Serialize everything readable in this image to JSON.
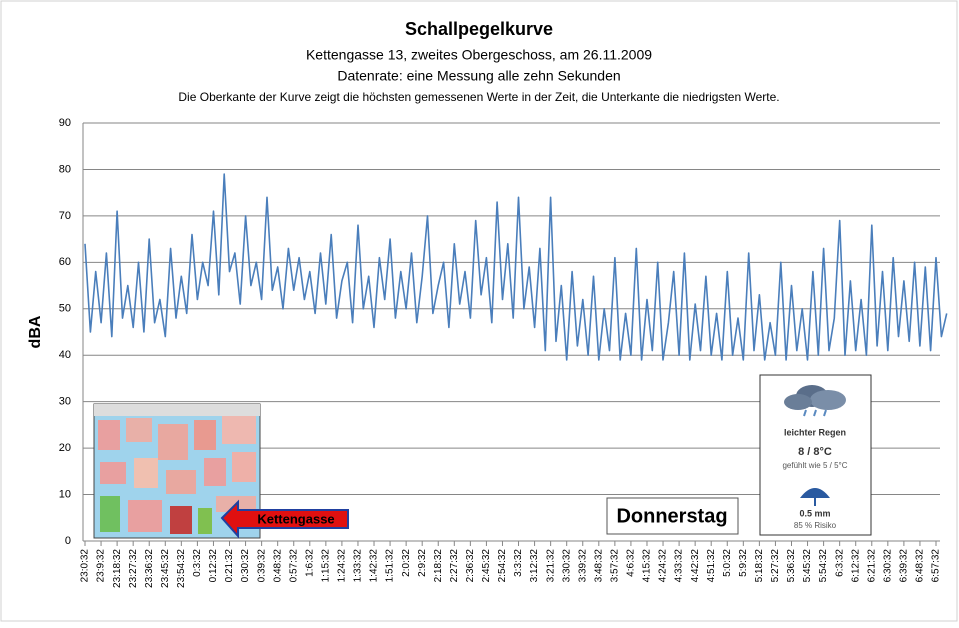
{
  "chart_data": {
    "type": "line",
    "title": "Schallpegelkurve",
    "subtitles": [
      "Kettengasse 13, zweites Obergeschoss, am 26.11.2009",
      "Datenrate: eine Messung alle zehn Sekunden",
      "Die Oberkante der Kurve zeigt die höchsten gemessenen Werte  in der Zeit, die Unterkante  die niedrigsten Werte."
    ],
    "y_label": "dBA",
    "ylim": [
      0,
      90
    ],
    "yticks": [
      0,
      10,
      20,
      30,
      40,
      50,
      60,
      70,
      80,
      90
    ],
    "grid": true,
    "categories": [
      "23:0:32",
      null,
      null,
      "23:9:32",
      null,
      null,
      "23:18:32",
      null,
      null,
      "23:27:32",
      null,
      null,
      "23:36:32",
      null,
      null,
      "23:45:32",
      null,
      null,
      "23:54:32",
      null,
      null,
      "0:3:32",
      null,
      null,
      "0:12:32",
      null,
      null,
      "0:21:32",
      null,
      null,
      "0:30:32",
      null,
      null,
      "0:39:32",
      null,
      null,
      "0:48:32",
      null,
      null,
      "0:57:32",
      null,
      null,
      "1:6:32",
      null,
      null,
      "1:15:32",
      null,
      null,
      "1:24:32",
      null,
      null,
      "1:33:32",
      null,
      null,
      "1:42:32",
      null,
      null,
      "1:51:32",
      null,
      null,
      "2:0:32",
      null,
      null,
      "2:9:32",
      null,
      null,
      "2:18:32",
      null,
      null,
      "2:27:32",
      null,
      null,
      "2:36:32",
      null,
      null,
      "2:45:32",
      null,
      null,
      "2:54:32",
      null,
      null,
      "3:3:32",
      null,
      null,
      "3:12:32",
      null,
      null,
      "3:21:32",
      null,
      null,
      "3:30:32",
      null,
      null,
      "3:39:32",
      null,
      null,
      "3:48:32",
      null,
      null,
      "3:57:32",
      null,
      null,
      "4:6:32",
      null,
      null,
      "4:15:32",
      null,
      null,
      "4:24:32",
      null,
      null,
      "4:33:32",
      null,
      null,
      "4:42:32",
      null,
      null,
      "4:51:32",
      null,
      null,
      "5:0:32",
      null,
      null,
      "5:9:32",
      null,
      null,
      "5:18:32",
      null,
      null,
      "5:27:32",
      null,
      null,
      "5:36:32",
      null,
      null,
      "5:45:32",
      null,
      null,
      "5:54:32",
      null,
      null,
      "6:3:32",
      null,
      null,
      "6:12:32",
      null,
      null,
      "6:21:32",
      null,
      null,
      "6:30:32",
      null,
      null,
      "6:39:32",
      null,
      null,
      "6:48:32",
      null,
      null,
      "6:57:32",
      null,
      null
    ],
    "series": [
      {
        "color": "#4a7ebb",
        "values": [
          64,
          45,
          58,
          47,
          62,
          44,
          71,
          48,
          55,
          46,
          60,
          45,
          65,
          47,
          52,
          44,
          63,
          48,
          57,
          49,
          66,
          52,
          60,
          55,
          71,
          53,
          79,
          58,
          62,
          51,
          70,
          55,
          60,
          52,
          74,
          54,
          59,
          50,
          63,
          54,
          61,
          52,
          58,
          49,
          62,
          51,
          66,
          48,
          56,
          60,
          47,
          68,
          50,
          57,
          46,
          61,
          52,
          65,
          48,
          58,
          50,
          62,
          47,
          57,
          70,
          49,
          55,
          60,
          46,
          64,
          51,
          58,
          48,
          69,
          53,
          61,
          47,
          73,
          52,
          64,
          48,
          74,
          50,
          59,
          46,
          63,
          41,
          74,
          43,
          55,
          39,
          58,
          42,
          52,
          40,
          57,
          39,
          50,
          41,
          61,
          39,
          49,
          40,
          63,
          39,
          52,
          41,
          60,
          39,
          47,
          58,
          40,
          62,
          39,
          51,
          41,
          57,
          40,
          49,
          39,
          58,
          40,
          48,
          39,
          62,
          41,
          53,
          39,
          47,
          40,
          60,
          39,
          55,
          41,
          50,
          39,
          58,
          40,
          63,
          41,
          48,
          69,
          40,
          56,
          41,
          52,
          40,
          68,
          42,
          58,
          41,
          61,
          44,
          56,
          43,
          60,
          42,
          59,
          41,
          61,
          44,
          49
        ]
      }
    ],
    "annotations": {
      "map_label": "Kettengasse",
      "day": "Donnerstag",
      "weather": [
        "leichter Regen",
        "8 / 8°C",
        "gefühlt wie 5 / 5°C",
        "0.5 mm",
        "85 % Risiko"
      ]
    }
  }
}
